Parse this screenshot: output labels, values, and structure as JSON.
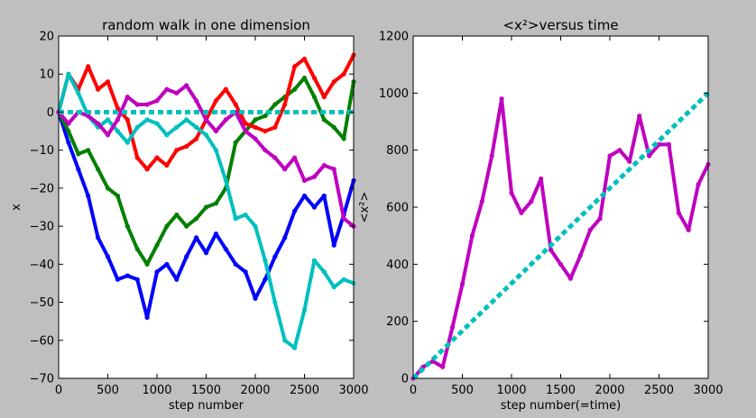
{
  "figure": {
    "background": "#bfbfbf"
  },
  "chart_data": [
    {
      "type": "scatter",
      "title": "random walk in one dimension",
      "xlabel": "step number",
      "ylabel": "x",
      "xlim": [
        0,
        3000
      ],
      "ylim": [
        -70,
        20
      ],
      "xticks": [
        0,
        500,
        1000,
        1500,
        2000,
        2500,
        3000
      ],
      "yticks": [
        -70,
        -60,
        -50,
        -40,
        -30,
        -20,
        -10,
        0,
        10,
        20
      ],
      "grid": false,
      "series": [
        {
          "color": "#0000ff",
          "x": [
            0,
            100,
            200,
            300,
            400,
            500,
            600,
            700,
            800,
            900,
            1000,
            1100,
            1200,
            1300,
            1400,
            1500,
            1600,
            1700,
            1800,
            1900,
            2000,
            2100,
            2200,
            2300,
            2400,
            2500,
            2600,
            2700,
            2800,
            2900,
            3000
          ],
          "y": [
            0,
            -8,
            -15,
            -22,
            -33,
            -38,
            -44,
            -43,
            -44,
            -54,
            -42,
            -40,
            -44,
            -38,
            -33,
            -37,
            -32,
            -36,
            -40,
            -42,
            -49,
            -44,
            -38,
            -33,
            -26,
            -22,
            -25,
            -22,
            -35,
            -27,
            -18
          ]
        },
        {
          "color": "#008000",
          "x": [
            0,
            100,
            200,
            300,
            400,
            500,
            600,
            700,
            800,
            900,
            1000,
            1100,
            1200,
            1300,
            1400,
            1500,
            1600,
            1700,
            1800,
            1900,
            2000,
            2100,
            2200,
            2300,
            2400,
            2500,
            2600,
            2700,
            2800,
            2900,
            3000
          ],
          "y": [
            0,
            -5,
            -11,
            -10,
            -15,
            -20,
            -22,
            -30,
            -36,
            -40,
            -35,
            -30,
            -27,
            -30,
            -28,
            -25,
            -24,
            -20,
            -8,
            -5,
            -2,
            -1,
            2,
            4,
            6,
            9,
            4,
            -2,
            -4,
            -7,
            8
          ]
        },
        {
          "color": "#ff0000",
          "x": [
            0,
            100,
            200,
            300,
            400,
            500,
            600,
            700,
            800,
            900,
            1000,
            1100,
            1200,
            1300,
            1400,
            1500,
            1600,
            1700,
            1800,
            1900,
            2000,
            2100,
            2200,
            2300,
            2400,
            2500,
            2600,
            2700,
            2800,
            2900,
            3000
          ],
          "y": [
            0,
            10,
            6,
            12,
            6,
            8,
            1,
            -2,
            -12,
            -15,
            -12,
            -14,
            -10,
            -9,
            -7,
            -2,
            3,
            6,
            2,
            -3,
            -4,
            -5,
            -4,
            2,
            12,
            14,
            9,
            4,
            8,
            10,
            15
          ]
        },
        {
          "color": "#00bfbf",
          "x": [
            0,
            100,
            200,
            300,
            400,
            500,
            600,
            700,
            800,
            900,
            1000,
            1100,
            1200,
            1300,
            1400,
            1500,
            1600,
            1700,
            1800,
            1900,
            2000,
            2100,
            2200,
            2300,
            2400,
            2500,
            2600,
            2700,
            2800,
            2900,
            3000
          ],
          "y": [
            0,
            10,
            5,
            -1,
            -4,
            -2,
            -5,
            -8,
            -4,
            -2,
            -3,
            -6,
            -4,
            -2,
            -4,
            -6,
            -10,
            -18,
            -28,
            -27,
            -30,
            -39,
            -50,
            -60,
            -62,
            -52,
            -39,
            -42,
            -46,
            -44,
            -45
          ]
        },
        {
          "color": "#bf00bf",
          "x": [
            0,
            100,
            200,
            300,
            400,
            500,
            600,
            700,
            800,
            900,
            1000,
            1100,
            1200,
            1300,
            1400,
            1500,
            1600,
            1700,
            1800,
            1900,
            2000,
            2100,
            2200,
            2300,
            2400,
            2500,
            2600,
            2700,
            2800,
            2900,
            3000
          ],
          "y": [
            0,
            -3,
            0,
            -1,
            -3,
            -6,
            -2,
            4,
            2,
            2,
            3,
            6,
            5,
            7,
            3,
            -2,
            -5,
            -2,
            0,
            -5,
            -7,
            -10,
            -12,
            -15,
            -12,
            -18,
            -17,
            -14,
            -15,
            -28,
            -30
          ]
        },
        {
          "color": "#00bfbf",
          "style": "dashed",
          "x": [
            0,
            3000
          ],
          "y": [
            0,
            0
          ]
        }
      ]
    },
    {
      "type": "scatter",
      "title": "<x²>versus time",
      "xlabel": "step number(=time)",
      "ylabel": "<x²>",
      "xlim": [
        0,
        3000
      ],
      "ylim": [
        0,
        1200
      ],
      "xticks": [
        0,
        500,
        1000,
        1500,
        2000,
        2500,
        3000
      ],
      "yticks": [
        0,
        200,
        400,
        600,
        800,
        1000,
        1200
      ],
      "grid": false,
      "series": [
        {
          "color": "#bf00bf",
          "x": [
            0,
            100,
            200,
            300,
            400,
            500,
            600,
            700,
            800,
            900,
            1000,
            1100,
            1200,
            1300,
            1400,
            1500,
            1600,
            1700,
            1800,
            1900,
            2000,
            2100,
            2200,
            2300,
            2400,
            2500,
            2600,
            2700,
            2800,
            2900,
            3000
          ],
          "y": [
            0,
            40,
            60,
            40,
            180,
            330,
            500,
            620,
            780,
            980,
            650,
            580,
            620,
            700,
            450,
            400,
            350,
            430,
            520,
            560,
            780,
            800,
            760,
            920,
            780,
            820,
            820,
            580,
            520,
            680,
            750
          ]
        },
        {
          "color": "#00bfbf",
          "style": "dashed",
          "x": [
            0,
            3000
          ],
          "y": [
            0,
            1000
          ]
        }
      ]
    }
  ]
}
